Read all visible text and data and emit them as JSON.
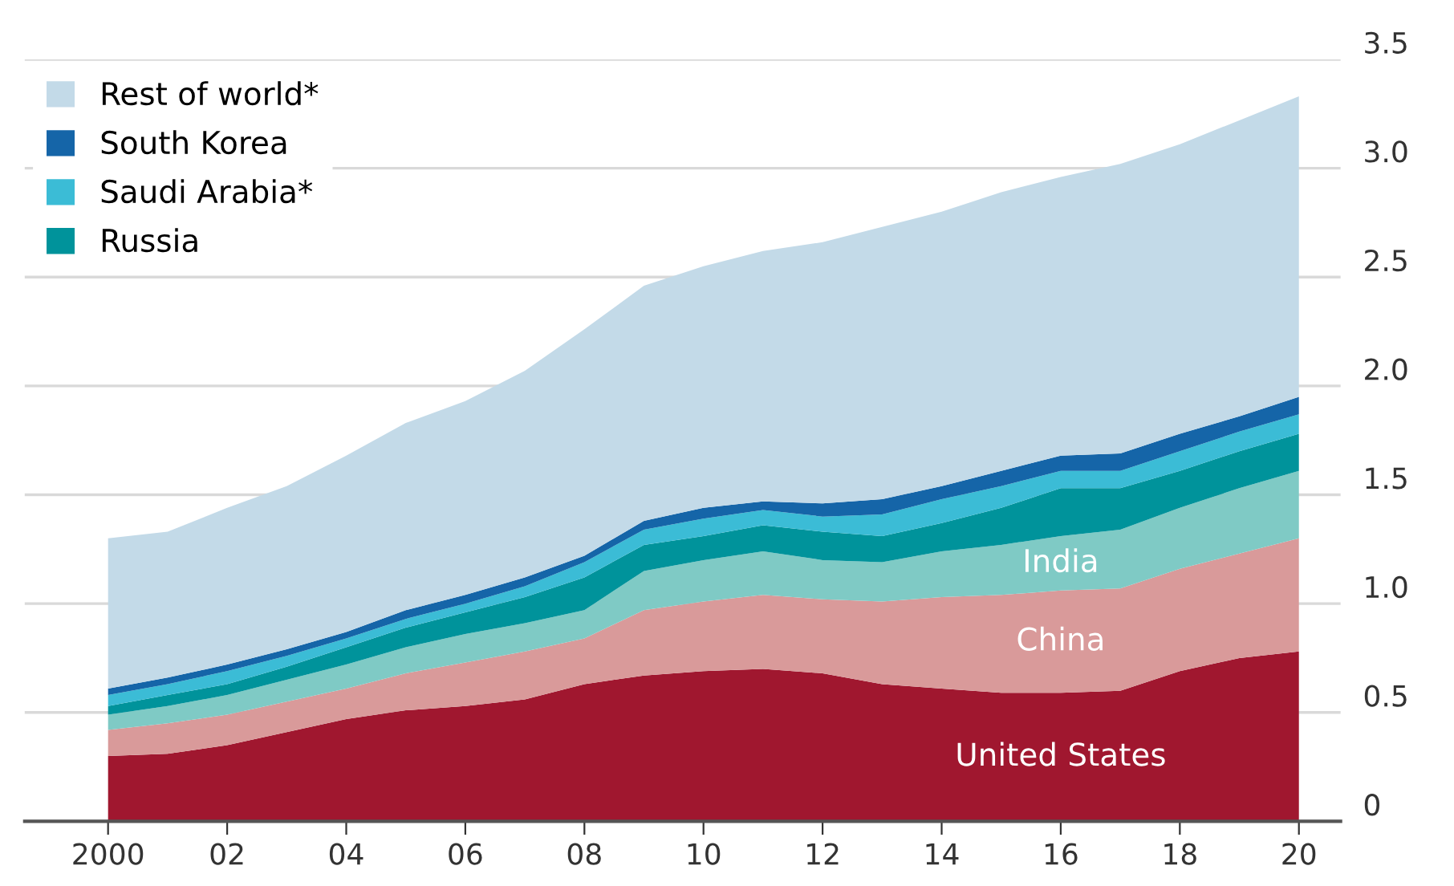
{
  "chart_data": {
    "type": "area",
    "stacked": true,
    "x": [
      2000,
      2001,
      2002,
      2003,
      2004,
      2005,
      2006,
      2007,
      2008,
      2009,
      2010,
      2011,
      2012,
      2013,
      2014,
      2015,
      2016,
      2017,
      2018,
      2019,
      2020
    ],
    "series": [
      {
        "name": "United States",
        "color": "#a0172f",
        "values": [
          0.3,
          0.31,
          0.35,
          0.41,
          0.47,
          0.51,
          0.53,
          0.56,
          0.63,
          0.67,
          0.69,
          0.7,
          0.68,
          0.63,
          0.61,
          0.59,
          0.59,
          0.6,
          0.69,
          0.75,
          0.78
        ]
      },
      {
        "name": "China",
        "color": "#d99a9a",
        "values": [
          0.12,
          0.14,
          0.14,
          0.14,
          0.14,
          0.17,
          0.2,
          0.22,
          0.21,
          0.3,
          0.32,
          0.34,
          0.34,
          0.38,
          0.42,
          0.45,
          0.47,
          0.47,
          0.47,
          0.48,
          0.52
        ]
      },
      {
        "name": "India",
        "color": "#7fcac5",
        "values": [
          0.07,
          0.08,
          0.09,
          0.1,
          0.11,
          0.12,
          0.13,
          0.13,
          0.13,
          0.18,
          0.19,
          0.2,
          0.18,
          0.18,
          0.21,
          0.23,
          0.25,
          0.27,
          0.28,
          0.3,
          0.31
        ]
      },
      {
        "name": "Russia",
        "color": "#00939b",
        "values": [
          0.04,
          0.05,
          0.05,
          0.06,
          0.08,
          0.09,
          0.1,
          0.12,
          0.15,
          0.12,
          0.11,
          0.12,
          0.13,
          0.12,
          0.13,
          0.17,
          0.22,
          0.19,
          0.17,
          0.17,
          0.17
        ]
      },
      {
        "name": "Saudi Arabia*",
        "color": "#3bbcd6",
        "values": [
          0.05,
          0.05,
          0.06,
          0.05,
          0.04,
          0.04,
          0.04,
          0.05,
          0.07,
          0.07,
          0.08,
          0.07,
          0.07,
          0.1,
          0.11,
          0.1,
          0.08,
          0.08,
          0.09,
          0.09,
          0.09
        ]
      },
      {
        "name": "South Korea",
        "color": "#1565a8",
        "values": [
          0.03,
          0.03,
          0.03,
          0.03,
          0.03,
          0.04,
          0.04,
          0.04,
          0.03,
          0.04,
          0.05,
          0.04,
          0.06,
          0.07,
          0.06,
          0.07,
          0.07,
          0.08,
          0.08,
          0.07,
          0.08
        ]
      },
      {
        "name": "Rest of world*",
        "color": "#c3dae8",
        "values": [
          0.69,
          0.67,
          0.72,
          0.75,
          0.81,
          0.86,
          0.89,
          0.95,
          1.04,
          1.08,
          1.11,
          1.15,
          1.2,
          1.25,
          1.26,
          1.28,
          1.28,
          1.33,
          1.33,
          1.36,
          1.38
        ]
      }
    ],
    "xlim": [
      1998.6,
      2020.7
    ],
    "xticks": [
      2000,
      {
        "value": 2002,
        "label": "02"
      },
      {
        "value": 2004,
        "label": "04"
      },
      {
        "value": 2006,
        "label": "06"
      },
      {
        "value": 2008,
        "label": "08"
      },
      {
        "value": 2010,
        "label": "10"
      },
      {
        "value": 2012,
        "label": "12"
      },
      {
        "value": 2014,
        "label": "14"
      },
      {
        "value": 2016,
        "label": "16"
      },
      {
        "value": 2018,
        "label": "18"
      },
      {
        "value": 2020,
        "label": "20"
      }
    ],
    "ylim": [
      0,
      3.5
    ],
    "yticks": [
      0,
      0.5,
      {
        "value": 1,
        "label": "1.0"
      },
      1.5,
      {
        "value": 2,
        "label": "2.0"
      },
      2.5,
      {
        "value": 3,
        "label": "3.0"
      },
      3.5
    ],
    "grid": "y",
    "legend": "top left"
  }
}
